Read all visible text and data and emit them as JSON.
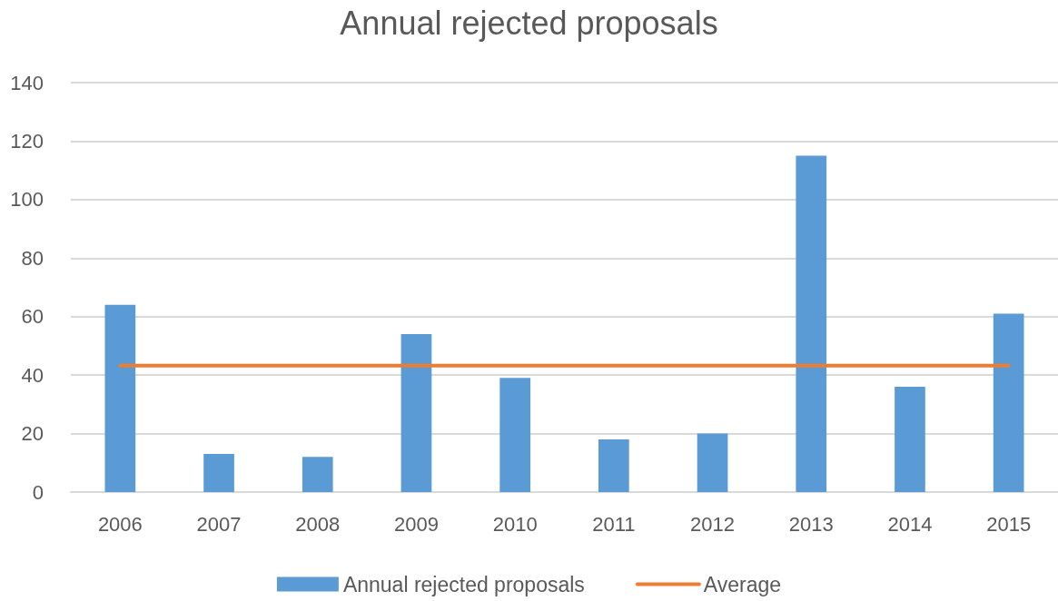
{
  "chart_data": {
    "type": "bar",
    "title": "Annual rejected proposals",
    "categories": [
      "2006",
      "2007",
      "2008",
      "2009",
      "2010",
      "2011",
      "2012",
      "2013",
      "2014",
      "2015"
    ],
    "series": [
      {
        "name": "Annual rejected proposals",
        "color": "#5b9bd5",
        "values": [
          64,
          13,
          12,
          54,
          39,
          18,
          20,
          115,
          36,
          61
        ]
      },
      {
        "name": "Average",
        "type": "line",
        "color": "#ed7d31",
        "values": [
          43.2,
          43.2,
          43.2,
          43.2,
          43.2,
          43.2,
          43.2,
          43.2,
          43.2,
          43.2
        ]
      }
    ],
    "ylim": [
      0,
      140
    ],
    "yticks": [
      0,
      20,
      40,
      60,
      80,
      100,
      120,
      140
    ],
    "grid": "y",
    "legend": "bottom"
  }
}
